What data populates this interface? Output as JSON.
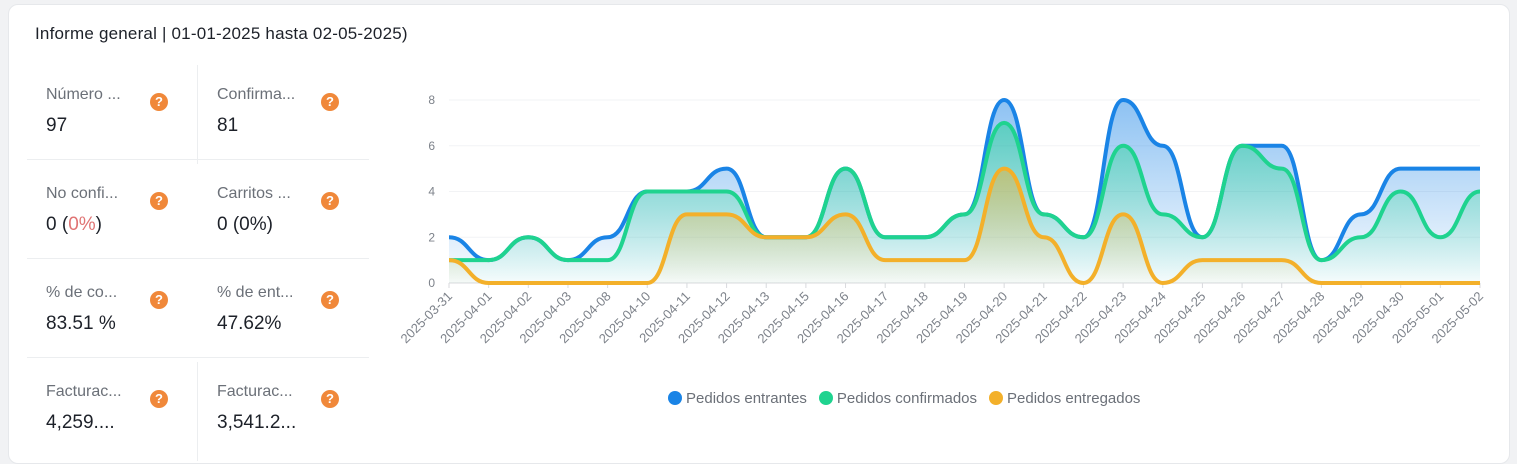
{
  "title": "Informe general | 01-01-2025 hasta 02-05-2025)",
  "stats": [
    {
      "label": "Número ...",
      "value": "97"
    },
    {
      "label": "Confirma...",
      "value": "81"
    },
    {
      "label": "No confi...",
      "value_prefix": "0 (",
      "value_colored": "0%",
      "value_suffix": ")"
    },
    {
      "label": "Carritos ...",
      "value": "0 (0%)"
    },
    {
      "label": "% de co...",
      "value": "83.51 %"
    },
    {
      "label": "% de ent...",
      "value": "47.62%"
    },
    {
      "label": "Facturac...",
      "value": "4,259...."
    },
    {
      "label": "Facturac...",
      "value": "3,541.2..."
    }
  ],
  "help_icon": "?",
  "colors": {
    "entrantes": "#1a84e6",
    "confirmados": "#1fd38f",
    "entregados": "#f3b02a",
    "danger": "#e07474",
    "success": "#4caf66",
    "info": "#3d78c9"
  },
  "chart_data": {
    "type": "area",
    "categories": [
      "2025-03-31",
      "2025-04-01",
      "2025-04-02",
      "2025-04-03",
      "2025-04-08",
      "2025-04-10",
      "2025-04-11",
      "2025-04-12",
      "2025-04-13",
      "2025-04-15",
      "2025-04-16",
      "2025-04-17",
      "2025-04-18",
      "2025-04-19",
      "2025-04-20",
      "2025-04-21",
      "2025-04-22",
      "2025-04-23",
      "2025-04-24",
      "2025-04-25",
      "2025-04-26",
      "2025-04-27",
      "2025-04-28",
      "2025-04-29",
      "2025-04-30",
      "2025-05-01",
      "2025-05-02"
    ],
    "series": [
      {
        "name": "Pedidos entrantes",
        "values": [
          2,
          1,
          2,
          1,
          2,
          4,
          4,
          5,
          2,
          2,
          5,
          2,
          2,
          3,
          8,
          3,
          2,
          8,
          6,
          2,
          6,
          6,
          1,
          3,
          5,
          5,
          5
        ]
      },
      {
        "name": "Pedidos confirmados",
        "values": [
          1,
          1,
          2,
          1,
          1,
          4,
          4,
          4,
          2,
          2,
          5,
          2,
          2,
          3,
          7,
          3,
          2,
          6,
          3,
          2,
          6,
          5,
          1,
          2,
          4,
          2,
          4
        ]
      },
      {
        "name": "Pedidos entregados",
        "values": [
          1,
          0,
          0,
          0,
          0,
          0,
          3,
          3,
          2,
          2,
          3,
          1,
          1,
          1,
          5,
          2,
          0,
          3,
          0,
          1,
          1,
          1,
          0,
          0,
          0,
          0,
          0
        ]
      }
    ],
    "yticks": [
      0,
      2,
      4,
      6,
      8
    ],
    "ylim": [
      0,
      8
    ],
    "grid": true,
    "legend": "bottom"
  }
}
